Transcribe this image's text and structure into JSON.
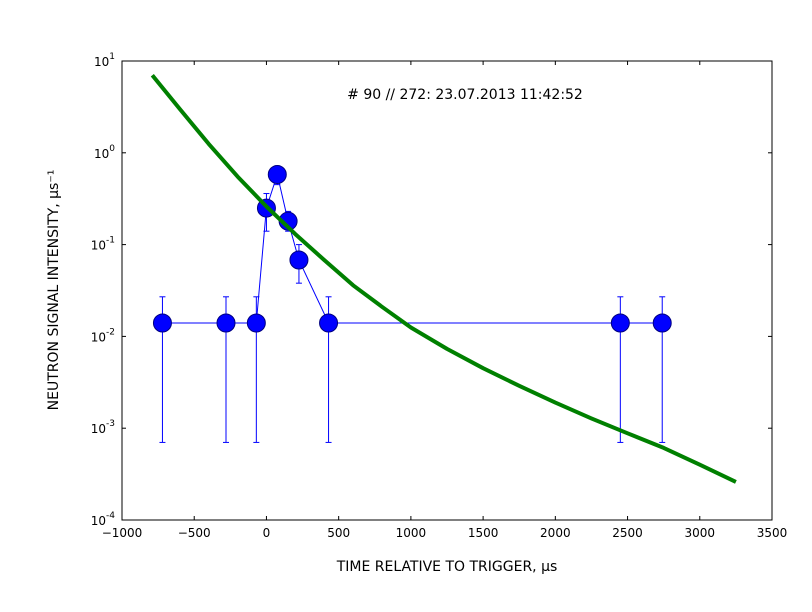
{
  "chart_data": {
    "type": "scatter",
    "title": "",
    "annotation": "# 90 // 272: 23.07.2013 11:42:52",
    "xlabel": "TIME RELATIVE TO TRIGGER, μs",
    "ylabel": "NEUTRON SIGNAL INTENSITY, μs⁻¹",
    "xlim": [
      -1000,
      3500
    ],
    "ylim": [
      0.0001,
      10
    ],
    "yscale": "log",
    "grid": false,
    "x_ticks": [
      {
        "value": -1000,
        "label": "−1000"
      },
      {
        "value": -500,
        "label": "−500"
      },
      {
        "value": 0,
        "label": "0"
      },
      {
        "value": 500,
        "label": "500"
      },
      {
        "value": 1000,
        "label": "1000"
      },
      {
        "value": 1500,
        "label": "1500"
      },
      {
        "value": 2000,
        "label": "2000"
      },
      {
        "value": 2500,
        "label": "2500"
      },
      {
        "value": 3000,
        "label": "3000"
      },
      {
        "value": 3500,
        "label": "3500"
      }
    ],
    "y_ticks": [
      {
        "value": 0.0001,
        "base": "10",
        "exp": "-4"
      },
      {
        "value": 0.001,
        "base": "10",
        "exp": "-3"
      },
      {
        "value": 0.01,
        "base": "10",
        "exp": "-2"
      },
      {
        "value": 0.1,
        "base": "10",
        "exp": "-1"
      },
      {
        "value": 1,
        "base": "10",
        "exp": "0"
      },
      {
        "value": 10,
        "base": "10",
        "exp": "1"
      }
    ],
    "series": [
      {
        "kind": "errorbar-markers",
        "color": "#0000ff",
        "edge_color": "#000080",
        "points": [
          {
            "x": -720,
            "y": 0.014,
            "ylow": 0.0007,
            "yhigh": 0.027
          },
          {
            "x": -280,
            "y": 0.014,
            "ylow": 0.0007,
            "yhigh": 0.027
          },
          {
            "x": -70,
            "y": 0.014,
            "ylow": 0.0007,
            "yhigh": 0.027
          },
          {
            "x": 0,
            "y": 0.25,
            "ylow": 0.14,
            "yhigh": 0.36
          },
          {
            "x": 75,
            "y": 0.58,
            "ylow": 0.45,
            "yhigh": 0.72
          },
          {
            "x": 150,
            "y": 0.18,
            "ylow": 0.14,
            "yhigh": 0.23
          },
          {
            "x": 225,
            "y": 0.068,
            "ylow": 0.038,
            "yhigh": 0.1
          },
          {
            "x": 430,
            "y": 0.014,
            "ylow": 0.0007,
            "yhigh": 0.027
          },
          {
            "x": 2450,
            "y": 0.014,
            "ylow": 0.0007,
            "yhigh": 0.027
          },
          {
            "x": 2740,
            "y": 0.014,
            "ylow": 0.0007,
            "yhigh": 0.027
          }
        ]
      },
      {
        "kind": "line",
        "color": "#008000",
        "x": [
          -790,
          -600,
          -400,
          -200,
          0,
          200,
          400,
          600,
          800,
          1000,
          1250,
          1500,
          1750,
          2000,
          2250,
          2500,
          2750,
          3000,
          3250
        ],
        "y": [
          7.0,
          3.0,
          1.25,
          0.55,
          0.26,
          0.13,
          0.068,
          0.036,
          0.021,
          0.0125,
          0.0073,
          0.0045,
          0.0029,
          0.0019,
          0.00128,
          0.00088,
          0.00061,
          0.0004,
          0.00026
        ]
      }
    ]
  }
}
